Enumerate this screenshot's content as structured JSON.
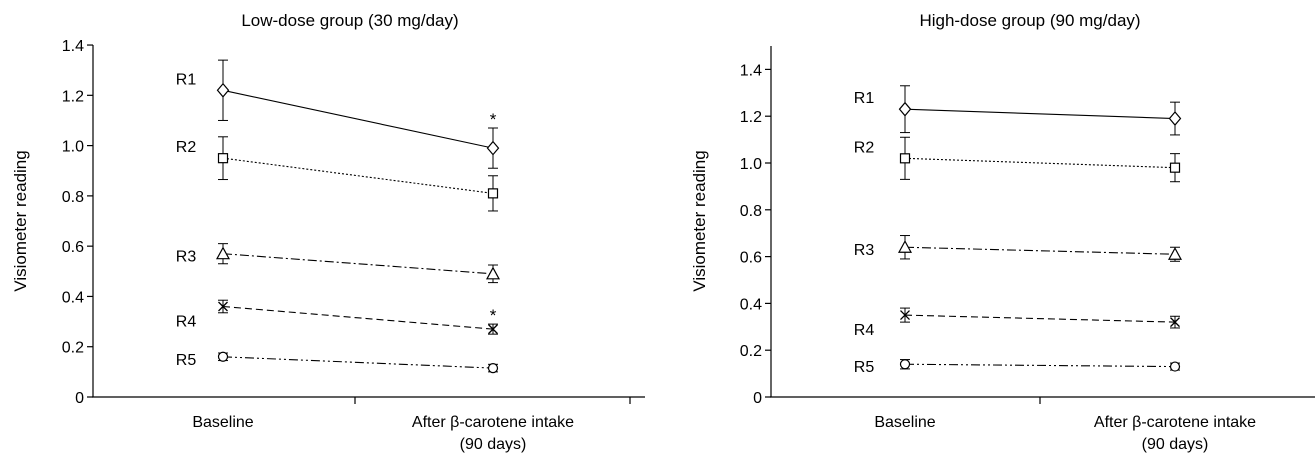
{
  "chart_data": [
    {
      "type": "line",
      "title": "Low-dose group (30 mg/day)",
      "xlabel": "",
      "ylabel": "Visiometer reading",
      "categories": [
        [
          "Baseline"
        ],
        [
          "After β-carotene intake",
          "(90 days)"
        ]
      ],
      "ylim": [
        0,
        1.4
      ],
      "yticks": [
        "0",
        "0.2",
        "0.4",
        "0.6",
        "0.8",
        "1.0",
        "1.2",
        "1.4"
      ],
      "grid": false,
      "series": [
        {
          "name": "R1",
          "marker": "diamond",
          "dash": "solid",
          "values": [
            1.22,
            0.99
          ],
          "errors": [
            0.12,
            0.08
          ],
          "significant": [
            false,
            true
          ]
        },
        {
          "name": "R2",
          "marker": "square",
          "dash": "dotted",
          "values": [
            0.95,
            0.81
          ],
          "errors": [
            0.085,
            0.07
          ],
          "significant": [
            false,
            false
          ]
        },
        {
          "name": "R3",
          "marker": "triangle",
          "dash": "dashdot",
          "values": [
            0.57,
            0.49
          ],
          "errors": [
            0.04,
            0.035
          ],
          "significant": [
            false,
            false
          ]
        },
        {
          "name": "R4",
          "marker": "cross",
          "dash": "dashed",
          "values": [
            0.36,
            0.27
          ],
          "errors": [
            0.025,
            0.02
          ],
          "significant": [
            false,
            true
          ]
        },
        {
          "name": "R5",
          "marker": "circle",
          "dash": "dashdotdot",
          "values": [
            0.16,
            0.115
          ],
          "errors": [
            0.015,
            0.015
          ],
          "significant": [
            false,
            false
          ]
        }
      ],
      "annotations": [
        "*"
      ]
    },
    {
      "type": "line",
      "title": "High-dose group (90 mg/day)",
      "xlabel": "",
      "ylabel": "Visiometer reading",
      "categories": [
        [
          "Baseline"
        ],
        [
          "After β-carotene intake",
          "(90 days)"
        ]
      ],
      "ylim": [
        0,
        1.5
      ],
      "yticks": [
        "0",
        "0.2",
        "0.4",
        "0.6",
        "0.8",
        "1.0",
        "1.2",
        "1.4"
      ],
      "grid": false,
      "series": [
        {
          "name": "R1",
          "marker": "diamond",
          "dash": "solid",
          "values": [
            1.23,
            1.19
          ],
          "errors": [
            0.1,
            0.07
          ],
          "significant": [
            false,
            false
          ]
        },
        {
          "name": "R2",
          "marker": "square",
          "dash": "dotted",
          "values": [
            1.02,
            0.98
          ],
          "errors": [
            0.09,
            0.06
          ],
          "significant": [
            false,
            false
          ]
        },
        {
          "name": "R3",
          "marker": "triangle",
          "dash": "dashdot",
          "values": [
            0.64,
            0.61
          ],
          "errors": [
            0.05,
            0.03
          ],
          "significant": [
            false,
            false
          ]
        },
        {
          "name": "R4",
          "marker": "cross",
          "dash": "dashed",
          "values": [
            0.35,
            0.32
          ],
          "errors": [
            0.03,
            0.025
          ],
          "significant": [
            false,
            false
          ]
        },
        {
          "name": "R5",
          "marker": "circle",
          "dash": "dashdotdot",
          "values": [
            0.14,
            0.13
          ],
          "errors": [
            0.02,
            0.015
          ],
          "significant": [
            false,
            false
          ]
        }
      ]
    }
  ]
}
